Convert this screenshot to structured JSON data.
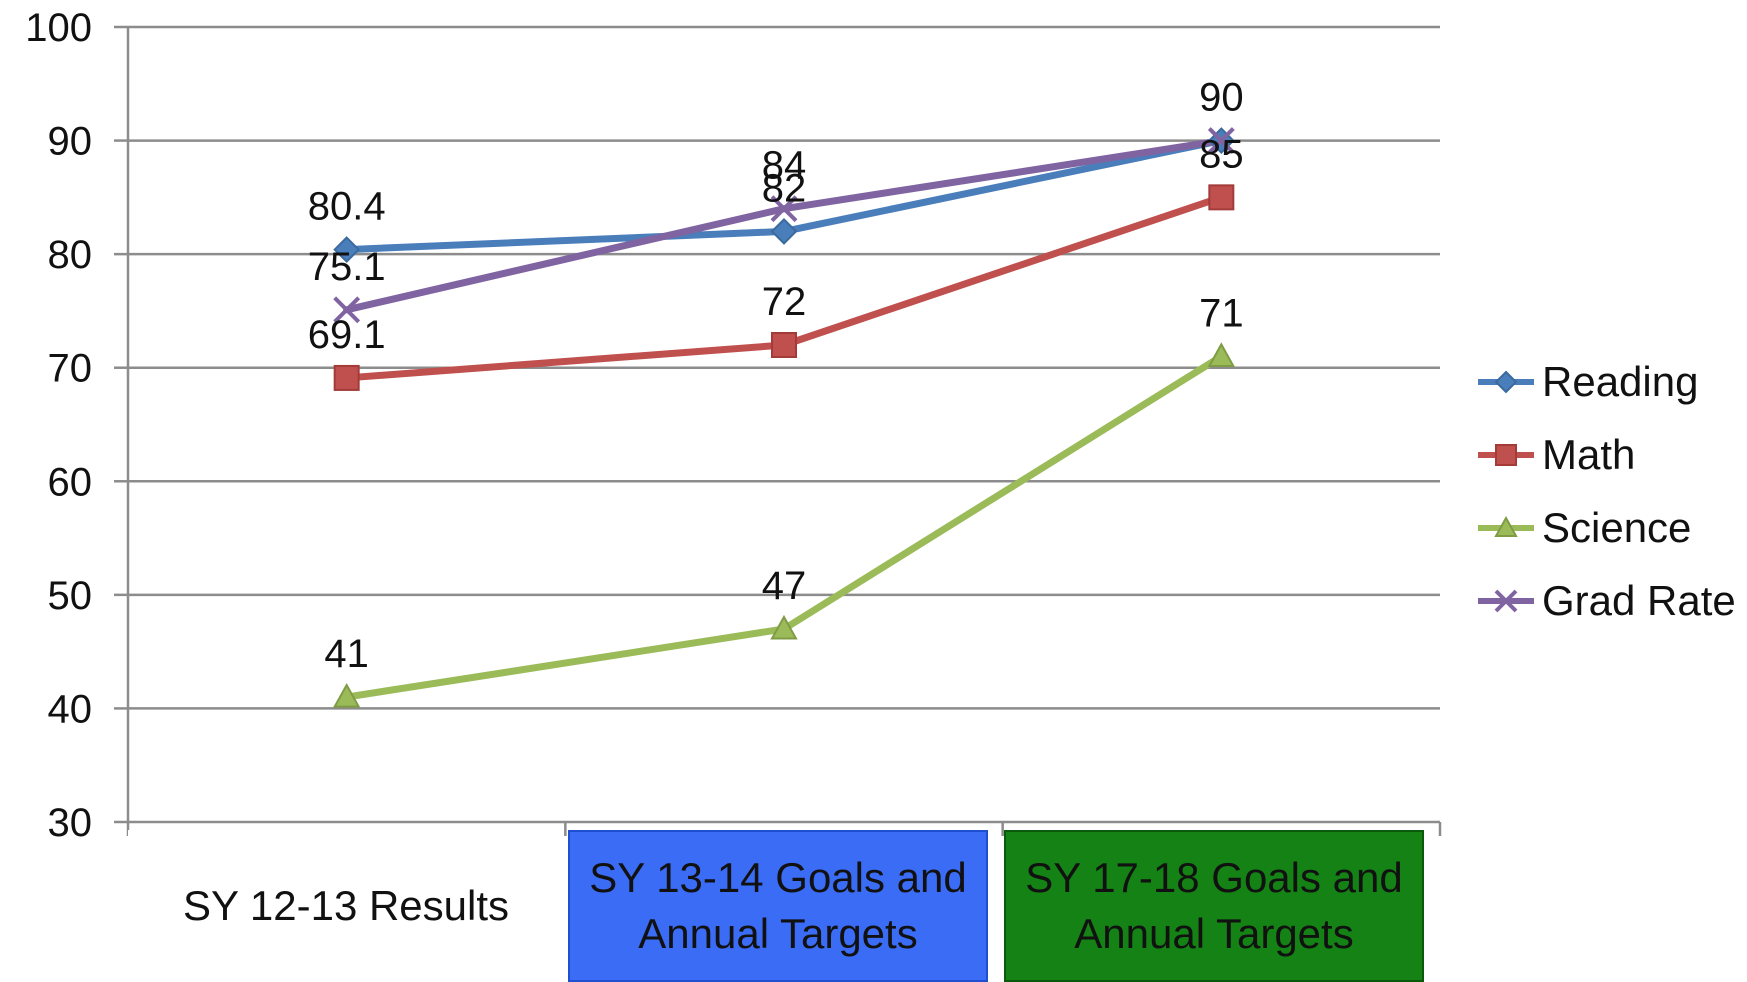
{
  "chart_data": {
    "type": "line",
    "categories": [
      "SY 12-13 Results",
      "SY 13-14 Goals and\nAnnual Targets",
      "SY 17-18 Goals and\nAnnual Targets"
    ],
    "category_colors": [
      "#ffffff",
      "#3b6cf6",
      "#148214"
    ],
    "series": [
      {
        "name": "Reading",
        "values": [
          80.4,
          82,
          90
        ],
        "labels": [
          "80.4",
          "82",
          "90"
        ],
        "color": "#4a7ebb",
        "marker": "diamond"
      },
      {
        "name": "Math",
        "values": [
          69.1,
          72,
          85
        ],
        "labels": [
          "69.1",
          "72",
          "85"
        ],
        "color": "#c0504d",
        "marker": "square"
      },
      {
        "name": "Science",
        "values": [
          41,
          47,
          71
        ],
        "labels": [
          "41",
          "47",
          "71"
        ],
        "color": "#9bbb59",
        "marker": "triangle"
      },
      {
        "name": "Grad Rate",
        "values": [
          75.1,
          84,
          90
        ],
        "labels": [
          "75.1",
          "84",
          ""
        ],
        "color": "#8064a2",
        "marker": "x"
      }
    ],
    "y_ticks": [
      30,
      40,
      50,
      60,
      70,
      80,
      90,
      100
    ],
    "ylim": [
      30,
      100
    ],
    "grid": true,
    "legend_position": "right"
  }
}
